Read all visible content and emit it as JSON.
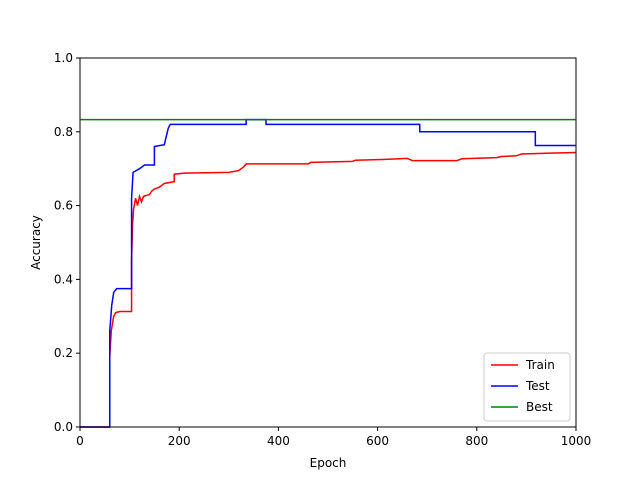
{
  "chart_data": {
    "type": "line",
    "title": "",
    "xlabel": "Epoch",
    "ylabel": "Accuracy",
    "xlim": [
      0,
      1000
    ],
    "ylim": [
      0.0,
      1.0
    ],
    "xticks": [
      0,
      200,
      400,
      600,
      800,
      1000
    ],
    "xtick_labels": [
      "0",
      "200",
      "400",
      "600",
      "800",
      "1000"
    ],
    "yticks": [
      0.0,
      0.2,
      0.4,
      0.6,
      0.8,
      1.0
    ],
    "ytick_labels": [
      "0.0",
      "0.2",
      "0.4",
      "0.6",
      "0.8",
      "1.0"
    ],
    "grid": false,
    "legend_position": "lower-right",
    "series": [
      {
        "name": "Train",
        "color": "#ff0000",
        "points": [
          [
            0,
            0
          ],
          [
            60,
            0
          ],
          [
            60,
            0.19
          ],
          [
            63,
            0.26
          ],
          [
            68,
            0.3
          ],
          [
            72,
            0.31
          ],
          [
            80,
            0.313
          ],
          [
            104,
            0.313
          ],
          [
            104,
            0.45
          ],
          [
            106,
            0.55
          ],
          [
            108,
            0.59
          ],
          [
            112,
            0.62
          ],
          [
            116,
            0.6
          ],
          [
            120,
            0.625
          ],
          [
            124,
            0.61
          ],
          [
            128,
            0.625
          ],
          [
            140,
            0.63
          ],
          [
            145,
            0.64
          ],
          [
            150,
            0.645
          ],
          [
            160,
            0.65
          ],
          [
            170,
            0.66
          ],
          [
            190,
            0.665
          ],
          [
            190,
            0.685
          ],
          [
            210,
            0.688
          ],
          [
            300,
            0.69
          ],
          [
            320,
            0.695
          ],
          [
            330,
            0.705
          ],
          [
            335,
            0.713
          ],
          [
            460,
            0.713
          ],
          [
            465,
            0.717
          ],
          [
            550,
            0.72
          ],
          [
            555,
            0.723
          ],
          [
            610,
            0.725
          ],
          [
            660,
            0.728
          ],
          [
            670,
            0.722
          ],
          [
            760,
            0.722
          ],
          [
            770,
            0.727
          ],
          [
            840,
            0.73
          ],
          [
            850,
            0.733
          ],
          [
            880,
            0.735
          ],
          [
            890,
            0.74
          ],
          [
            940,
            0.742
          ],
          [
            1000,
            0.744
          ]
        ]
      },
      {
        "name": "Test",
        "color": "#0000ff",
        "points": [
          [
            0,
            0
          ],
          [
            60,
            0
          ],
          [
            60,
            0.26
          ],
          [
            64,
            0.33
          ],
          [
            68,
            0.365
          ],
          [
            74,
            0.375
          ],
          [
            104,
            0.375
          ],
          [
            104,
            0.62
          ],
          [
            107,
            0.69
          ],
          [
            120,
            0.7
          ],
          [
            130,
            0.71
          ],
          [
            150,
            0.71
          ],
          [
            150,
            0.76
          ],
          [
            170,
            0.765
          ],
          [
            178,
            0.81
          ],
          [
            182,
            0.82
          ],
          [
            335,
            0.82
          ],
          [
            335,
            0.833
          ],
          [
            375,
            0.833
          ],
          [
            375,
            0.82
          ],
          [
            685,
            0.82
          ],
          [
            685,
            0.8
          ],
          [
            918,
            0.8
          ],
          [
            918,
            0.763
          ],
          [
            1000,
            0.763
          ]
        ]
      },
      {
        "name": "Best",
        "color": "#008000",
        "points": [
          [
            0,
            0.833
          ],
          [
            1000,
            0.833
          ]
        ]
      }
    ]
  }
}
